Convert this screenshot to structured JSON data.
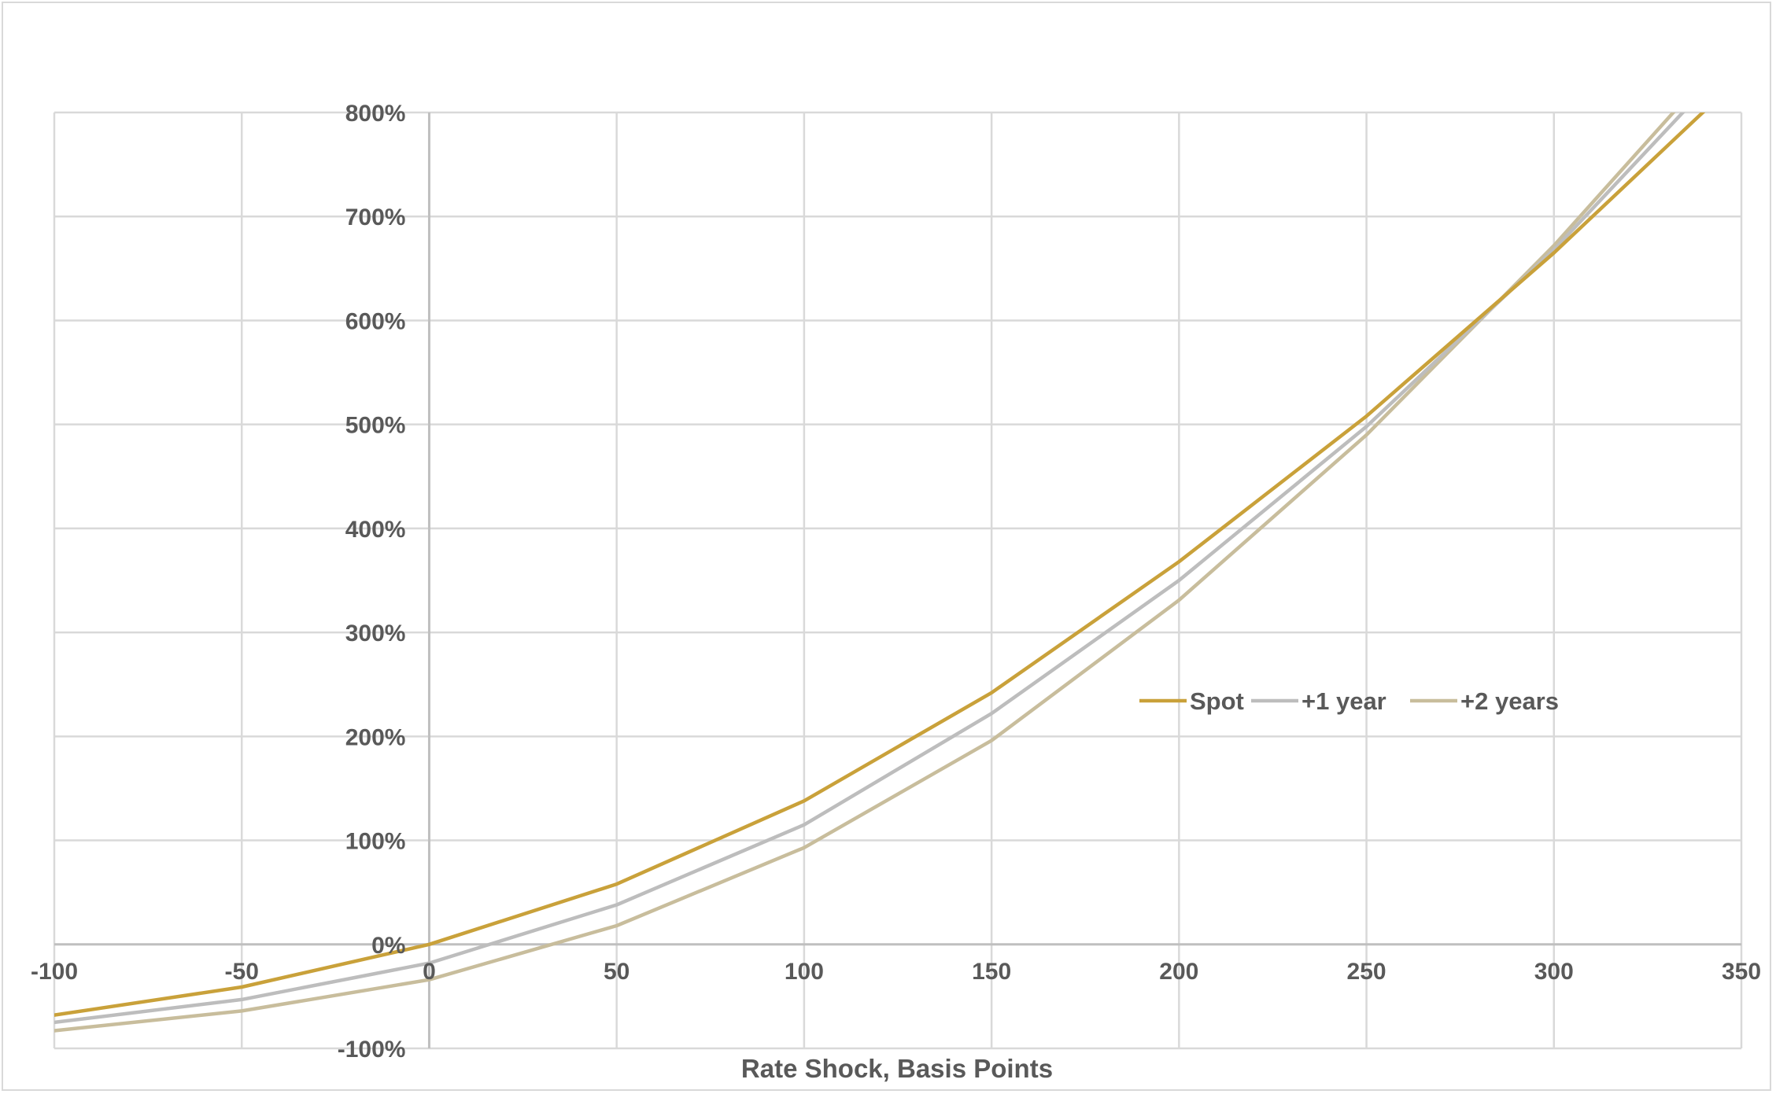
{
  "chart_data": {
    "type": "line",
    "title": "",
    "xlabel": "Rate Shock, Basis Points",
    "ylabel": "",
    "xlim": [
      -100,
      350
    ],
    "ylim": [
      -100,
      800
    ],
    "x_ticks": [
      -100,
      -50,
      0,
      50,
      100,
      150,
      200,
      250,
      300,
      350
    ],
    "x_tick_labels": [
      "-100",
      "-50",
      "0",
      "50",
      "100",
      "150",
      "200",
      "250",
      "300",
      "350"
    ],
    "y_ticks": [
      -100,
      0,
      100,
      200,
      300,
      400,
      500,
      600,
      700,
      800
    ],
    "y_tick_labels": [
      "-100%",
      "0%",
      "100%",
      "200%",
      "300%",
      "400%",
      "500%",
      "600%",
      "700%",
      "800%"
    ],
    "y_unit": "%",
    "grid": true,
    "legend_position": "right-center",
    "x": [
      -100,
      -50,
      0,
      50,
      100,
      150,
      200,
      250,
      300,
      350
    ],
    "series": [
      {
        "name": "Spot",
        "color": "#c9a13a",
        "values": [
          -68,
          -41,
          0,
          58,
          138,
          242,
          368,
          508,
          665,
          835
        ]
      },
      {
        "name": "+1 year",
        "color": "#bdbdbd",
        "values": [
          -75,
          -53,
          -18,
          38,
          115,
          222,
          350,
          498,
          668,
          860
        ]
      },
      {
        "name": "+2 years",
        "color": "#c8bd9c",
        "values": [
          -83,
          -64,
          -34,
          18,
          93,
          196,
          331,
          490,
          672,
          873
        ]
      }
    ]
  }
}
